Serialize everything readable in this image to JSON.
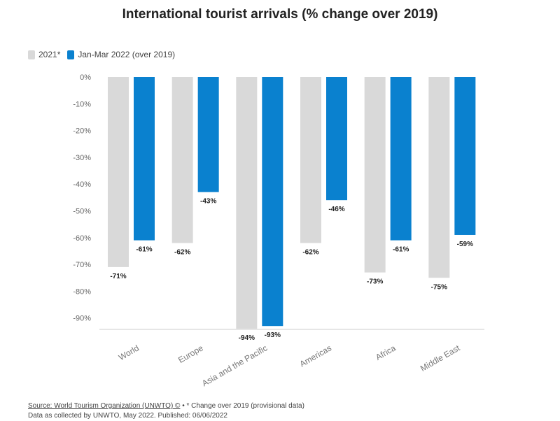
{
  "chart_data": {
    "type": "bar",
    "title": "International tourist arrivals (% change over 2019)",
    "categories": [
      "World",
      "Europe",
      "Asia and the Pacific",
      "Americas",
      "Africa",
      "Middle East"
    ],
    "series": [
      {
        "name": "2021*",
        "color": "#d9d9d9",
        "values": [
          -71,
          -62,
          -94,
          -62,
          -73,
          -75
        ]
      },
      {
        "name": "Jan-Mar 2022 (over 2019)",
        "color": "#0a81cf",
        "values": [
          -61,
          -43,
          -93,
          -46,
          -61,
          -59
        ]
      }
    ],
    "y_ticks": [
      "0%",
      "-10%",
      "-20%",
      "-30%",
      "-40%",
      "-50%",
      "-60%",
      "-70%",
      "-80%",
      "-90%"
    ],
    "ylim": [
      -94,
      0
    ],
    "grid": false,
    "legend_position": "top-left"
  },
  "footer": {
    "source_link": "Source: World Tourism Organization (UNWTO) ©",
    "source_note": " • * Change over 2019 (provisional data)",
    "line2": "Data as collected by UNWTO, May 2022. Published: 06/06/2022"
  }
}
